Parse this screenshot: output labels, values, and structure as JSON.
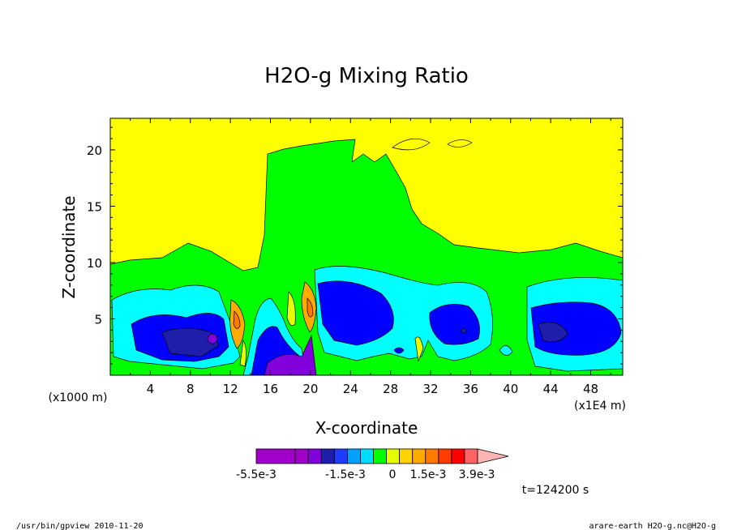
{
  "chart_data": {
    "type": "heatmap",
    "title": "H2O-g Mixing Ratio",
    "xlabel": "X-coordinate",
    "ylabel": "Z-coordinate",
    "x_unit_label": "(x1000 m)",
    "x_scale_label": "(x1E4 m)",
    "x_ticks": [
      "4",
      "8",
      "12",
      "16",
      "20",
      "24",
      "28",
      "32",
      "36",
      "40",
      "44",
      "48"
    ],
    "y_ticks": [
      "5",
      "10",
      "15",
      "20"
    ],
    "xlim": [
      0,
      51.2
    ],
    "ylim": [
      0,
      22.8
    ],
    "grid": false,
    "colorbar": {
      "colors": [
        "#a000c8",
        "#a000c8",
        "#8200dc",
        "#1e1eaa",
        "#1e3cff",
        "#00a0ff",
        "#00dcff",
        "#00ff00",
        "#e6ff00",
        "#ffd200",
        "#ffaa00",
        "#ff7800",
        "#ff3c00",
        "#ff0000",
        "#ff6464",
        "#ffb4b4"
      ],
      "tick_labels": [
        "-5.5e-3",
        "-1.5e-3",
        "0",
        "1.5e-3",
        "3.9e-3"
      ],
      "tick_values": [
        -0.0055,
        -0.0015,
        0,
        0.0015,
        0.0039
      ]
    },
    "colors": {
      "background": "#ffff00",
      "green": "#00ff00",
      "cyan": "#00ffff",
      "blue": "#0000ff",
      "purple": "#8200dc",
      "magenta": "#a000c8",
      "orange": "#ffa500",
      "red": "#ff0000"
    }
  },
  "time_label": "t=124200 s",
  "footer": {
    "left": "/usr/bin/gpview  2010-11-20",
    "right": "arare-earth_H2O-g.nc@H2O-g"
  }
}
